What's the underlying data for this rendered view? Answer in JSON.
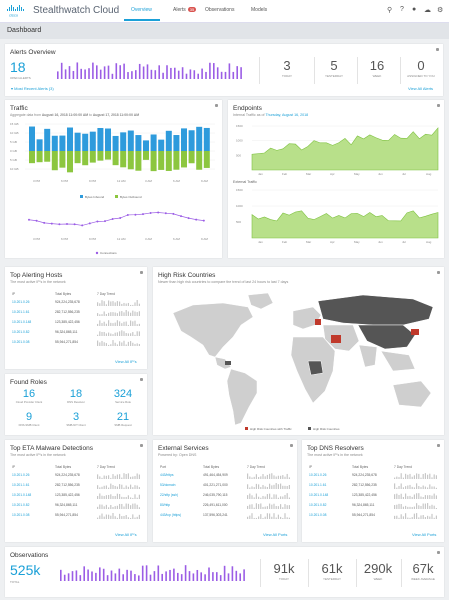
{
  "app": {
    "name": "Stealthwatch Cloud",
    "nav": [
      {
        "label": "Overview"
      },
      {
        "label": "Alerts"
      },
      {
        "label": "Observations"
      },
      {
        "label": "Models"
      }
    ],
    "alerts_badge": "35",
    "page_title": "Dashboard"
  },
  "alerts_overview": {
    "title": "Alerts Overview",
    "open_count": "18",
    "open_label": "OPEN ALERTS",
    "stats": [
      {
        "value": "3",
        "label": "TODAY"
      },
      {
        "value": "5",
        "label": "YESTERDAY"
      },
      {
        "value": "16",
        "label": "WEEK"
      },
      {
        "value": "0",
        "label": "ASSIGNED TO YOU"
      }
    ],
    "recent_link": "Most Recent Alerts (3)",
    "view_all": "View All Alerts"
  },
  "traffic": {
    "title": "Traffic",
    "subtitle_prefix": "Aggregate data from ",
    "subtitle_from": "August 16, 2018 11:00:00 AM",
    "subtitle_to": "August 17, 2018 11:00:00 AM",
    "subtitle_to_prefix": " to ",
    "y_ticks": [
      "15 GB",
      "10 GB",
      "5 GB",
      "0 GB",
      "5 GB",
      "10 GB"
    ],
    "x_ticks": [
      "3 PM",
      "6 PM",
      "9 PM",
      "12 AM",
      "3 AM",
      "6 AM",
      "9 AM"
    ],
    "legend": [
      "Bytes Inbound",
      "Bytes Outbound"
    ],
    "legend2": "Connections"
  },
  "endpoints": {
    "title": "Endpoints",
    "subtitle_prefix": "Internal Traffic as of ",
    "subtitle_date": "Thursday, August 16, 2018",
    "ticks1": [
      "1500",
      "1000",
      "500"
    ],
    "ticks2": [
      "1500",
      "1000",
      "500"
    ],
    "x_ticks": [
      "Jan",
      "Feb",
      "Mar",
      "Apr",
      "May",
      "Jun",
      "Jul",
      "Aug"
    ],
    "external_label": "External Traffic"
  },
  "top_alerting_hosts": {
    "title": "Top Alerting Hosts",
    "subtitle": "The most active IP's in the network",
    "headers": [
      "IP",
      "Total Bytes",
      "7 Day Trend"
    ],
    "rows": [
      {
        "ip": "10.201.0.26",
        "bytes": "924,224,235,678"
      },
      {
        "ip": "10.201.1.61",
        "bytes": "282,712,556,235"
      },
      {
        "ip": "10.201.0.148",
        "bytes": "123,385,422,456"
      },
      {
        "ip": "10.201.0.82",
        "bytes": "96,324,865,111"
      },
      {
        "ip": "10.201.0.08",
        "bytes": "55,944,271,854"
      }
    ],
    "view_all": "View All IP's"
  },
  "high_risk": {
    "title": "High Risk Countries",
    "subtitle": "Newer than high risk countries to compare the trend of last 24 hours to last 7 days",
    "legend": [
      "High Risk Countries with Traffic",
      "High Risk Countries"
    ]
  },
  "found_roles": {
    "title": "Found Roles",
    "items": [
      {
        "value": "16",
        "label": "Cloud Provider Client"
      },
      {
        "value": "18",
        "label": "DNS Resolver"
      },
      {
        "value": "324",
        "label": "Service Role"
      },
      {
        "value": "9",
        "label": "DNS-SMB Client"
      },
      {
        "value": "3",
        "label": "SMB-NIT Client"
      },
      {
        "value": "21",
        "label": "SMB Request"
      }
    ]
  },
  "top_eta": {
    "title": "Top ETA Malware Detections",
    "subtitle": "The most active IP's in the network",
    "headers": [
      "IP",
      "Total Bytes",
      "7 Day Trend"
    ],
    "rows": [
      {
        "ip": "10.201.0.26",
        "bytes": "924,224,235,678"
      },
      {
        "ip": "10.201.1.61",
        "bytes": "282,712,556,235"
      },
      {
        "ip": "10.201.0.148",
        "bytes": "123,385,422,456"
      },
      {
        "ip": "10.201.0.82",
        "bytes": "96,324,865,111"
      },
      {
        "ip": "10.201.0.08",
        "bytes": "55,944,271,854"
      }
    ],
    "view_all": "View All IP's"
  },
  "external_services": {
    "title": "External Services",
    "subtitle": "Powered by: Open DNS",
    "headers": [
      "Port",
      "Total Bytes",
      "7 Day Trend"
    ],
    "rows": [
      {
        "name": "443/https",
        "bytes": "491,464,454,909"
      },
      {
        "name": "53/domain",
        "bytes": "401,221,271,000"
      },
      {
        "name": "22/sftp (ssh)",
        "bytes": "246,035,790,115"
      },
      {
        "name": "80/http",
        "bytes": "226,491,611,000"
      },
      {
        "name": "443/tcp (https)",
        "bytes": "137,596,303,241"
      }
    ],
    "view_all": "View All Ports"
  },
  "top_dns": {
    "title": "Top DNS Resolvers",
    "subtitle": "The most active IP's in the network",
    "headers": [
      "IP",
      "Total Bytes",
      "7 Day Trend"
    ],
    "rows": [
      {
        "ip": "10.201.0.26",
        "bytes": "924,224,235,678"
      },
      {
        "ip": "10.201.1.61",
        "bytes": "282,712,556,235"
      },
      {
        "ip": "10.201.0.148",
        "bytes": "123,385,422,456"
      },
      {
        "ip": "10.201.0.82",
        "bytes": "96,324,865,111"
      },
      {
        "ip": "10.201.0.08",
        "bytes": "55,944,271,854"
      }
    ],
    "view_all": "View All Ports"
  },
  "observations": {
    "title": "Observations",
    "total": "525k",
    "total_label": "TOTAL",
    "stats": [
      {
        "value": "91k",
        "label": "TODAY"
      },
      {
        "value": "61k",
        "label": "YESTERDAY"
      },
      {
        "value": "290k",
        "label": "WEEK"
      },
      {
        "value": "67k",
        "label": "WEEK AVERAGE"
      }
    ]
  },
  "colors": {
    "accent": "#1ba0d7",
    "inbound": "#2e9bdc",
    "outbound": "#8cc63f",
    "purple": "#9b5de5",
    "green_area": "#b8e08a",
    "alert_red": "#d9534f"
  }
}
